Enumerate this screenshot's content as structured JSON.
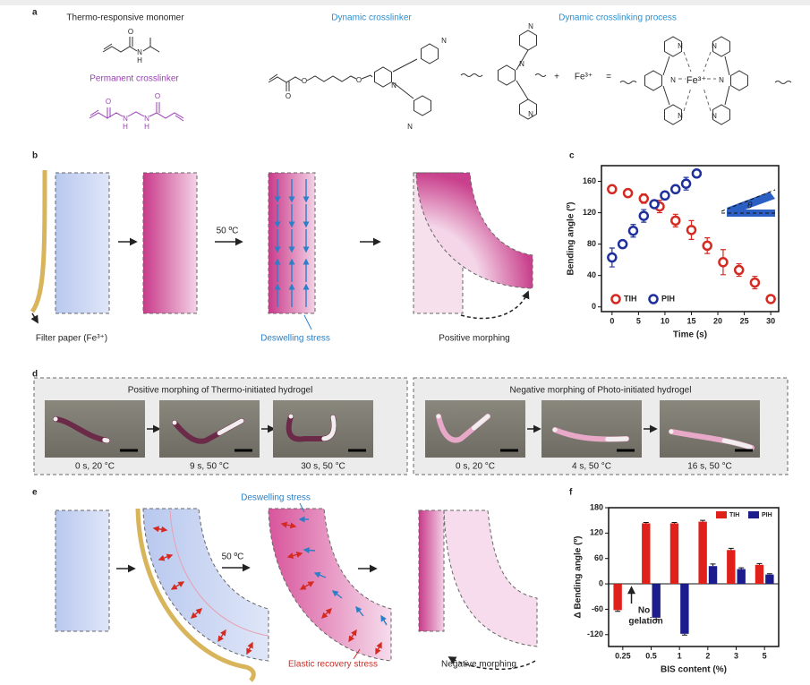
{
  "panel_labels": [
    "a",
    "b",
    "c",
    "d",
    "e",
    "f"
  ],
  "panel_a": {
    "monomer_title": "Thermo-responsive monomer",
    "permanent_title": "Permanent crosslinker",
    "dynamic_title": "Dynamic crosslinker",
    "process_title": "Dynamic crosslinking process",
    "monomer_atoms": [
      "O",
      "N",
      "H"
    ],
    "permanent_atoms": [
      "O",
      "O",
      "N",
      "N",
      "H",
      "H"
    ],
    "dynamic_atoms": [
      "O",
      "O",
      "O",
      "N",
      "N",
      "N"
    ],
    "process_atoms": [
      "N",
      "N",
      "N",
      "N",
      "N",
      "N",
      "N",
      "N",
      "N"
    ],
    "plus": "+",
    "ion": "Fe³⁺",
    "equals": "=",
    "complex_ion": "Fe³⁺"
  },
  "panel_b": {
    "temperature": "50 ºC",
    "filter_caption": "Filter paper (Fe³⁺)",
    "stress_caption": "Deswelling stress",
    "morph_caption": "Positive morphing"
  },
  "panel_d": {
    "left_title": "Positive morphing of Thermo-initiated hydrogel",
    "right_title": "Negative morphing of Photo-initiated hydrogel",
    "captions": [
      "0 s, 20 °C",
      "9 s, 50 °C",
      "30 s, 50 °C",
      "0 s, 20 °C",
      "4 s, 50 °C",
      "16 s, 50 °C"
    ]
  },
  "panel_e": {
    "deswelling": "Deswelling stress",
    "temperature": "50 ºC",
    "elastic": "Elastic recovery stress",
    "morph_caption": "Negative morphing"
  },
  "chart_data": [
    {
      "type": "scatter",
      "x_label": "Time (s)",
      "y_label": "Bending angle (º)",
      "inset_label": "θ",
      "xlim": [
        -2,
        31.5
      ],
      "ylim": [
        -6,
        180
      ],
      "xticks": [
        0,
        5,
        10,
        15,
        20,
        25,
        30
      ],
      "yticks": [
        0,
        40,
        80,
        120,
        160
      ],
      "legend": "lower left",
      "series": [
        {
          "name": "TIH",
          "color": "#d42a22",
          "x": [
            0,
            3,
            6,
            9,
            12,
            15,
            18,
            21,
            24,
            27,
            30
          ],
          "values": [
            150,
            145,
            138,
            128,
            110,
            98,
            78,
            57,
            47,
            31,
            10
          ],
          "errors": [
            3,
            4,
            6,
            8,
            8,
            12,
            10,
            16,
            8,
            8,
            4
          ]
        },
        {
          "name": "PIH",
          "color": "#1f2f9c",
          "x": [
            0,
            2,
            4,
            6,
            8,
            10,
            12,
            14,
            16
          ],
          "values": [
            63,
            80,
            97,
            116,
            131,
            142,
            150,
            157,
            170
          ],
          "errors": [
            12,
            5,
            8,
            8,
            4,
            4,
            5,
            8,
            3
          ]
        }
      ]
    },
    {
      "type": "bar",
      "x_label": "BIS content (%)",
      "y_label": "Δ Bending angle (º)",
      "categories": [
        "0.25",
        "0.5",
        "1",
        "2",
        "3",
        "5"
      ],
      "ylim": [
        -148,
        180
      ],
      "yticks": [
        -120,
        -60,
        0,
        60,
        120,
        180
      ],
      "legend": "upper right",
      "annotation_lines": [
        "No",
        "gelation"
      ],
      "series": [
        {
          "name": "TIH",
          "color": "#e0201b",
          "values": [
            -62,
            143,
            143,
            147,
            80,
            45
          ],
          "errors": [
            3,
            2,
            2,
            3,
            4,
            3
          ]
        },
        {
          "name": "PIH",
          "color": "#1c1c8c",
          "values": [
            null,
            -80,
            -118,
            42,
            35,
            22
          ],
          "errors": [
            null,
            4,
            3,
            5,
            3,
            2
          ]
        }
      ]
    }
  ]
}
